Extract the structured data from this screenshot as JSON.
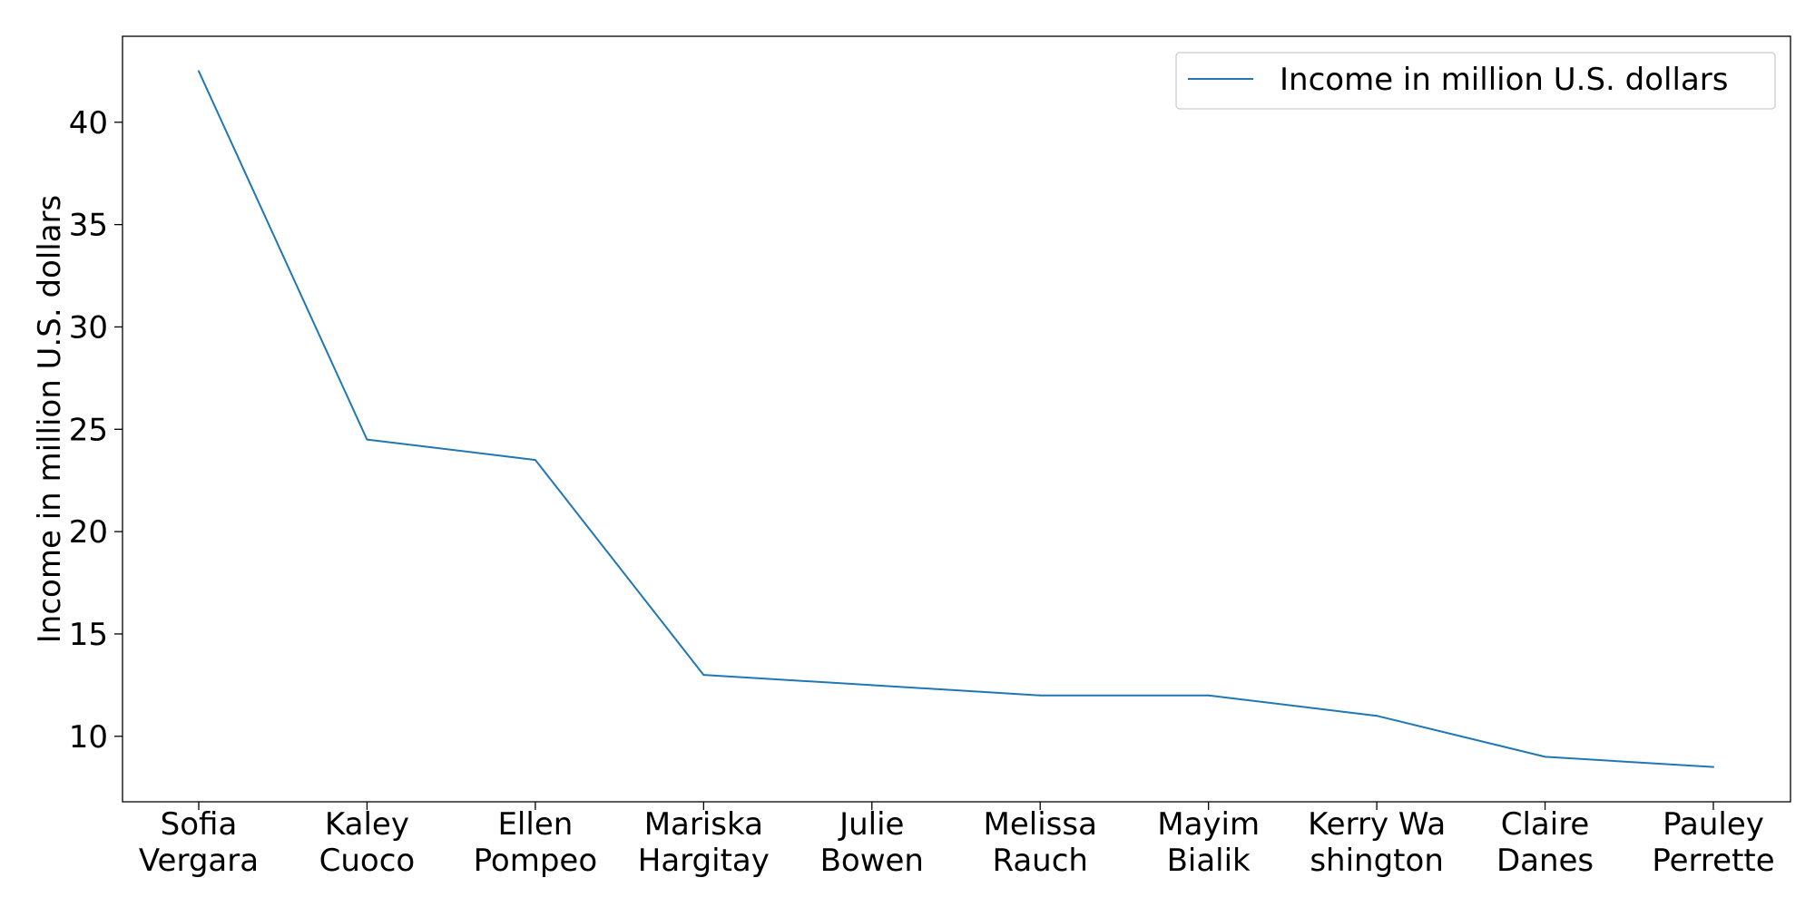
{
  "chart_data": {
    "type": "line",
    "categories": [
      [
        "Sofia",
        "Vergara"
      ],
      [
        "Kaley",
        "Cuoco"
      ],
      [
        "Ellen",
        "Pompeo"
      ],
      [
        "Mariska",
        "Hargitay"
      ],
      [
        "Julie",
        "Bowen"
      ],
      [
        "Melissa",
        "Rauch"
      ],
      [
        "Mayim",
        "Bialik"
      ],
      [
        "Kerry Wa",
        "shington"
      ],
      [
        "Claire",
        "Danes"
      ],
      [
        "Pauley",
        "Perrette"
      ]
    ],
    "series": [
      {
        "name": "Income in million U.S. dollars",
        "values": [
          42.5,
          24.5,
          23.5,
          13.0,
          12.5,
          12.0,
          12.0,
          11.0,
          9.0,
          8.5
        ],
        "color": "#1f77b4"
      }
    ],
    "title": "",
    "xlabel": "",
    "ylabel": "Income in million U.S. dollars",
    "ylim": [
      6.8,
      44.2
    ],
    "yticks": [
      10,
      15,
      20,
      25,
      30,
      35,
      40
    ],
    "grid": false,
    "legend_position": "top-right"
  }
}
